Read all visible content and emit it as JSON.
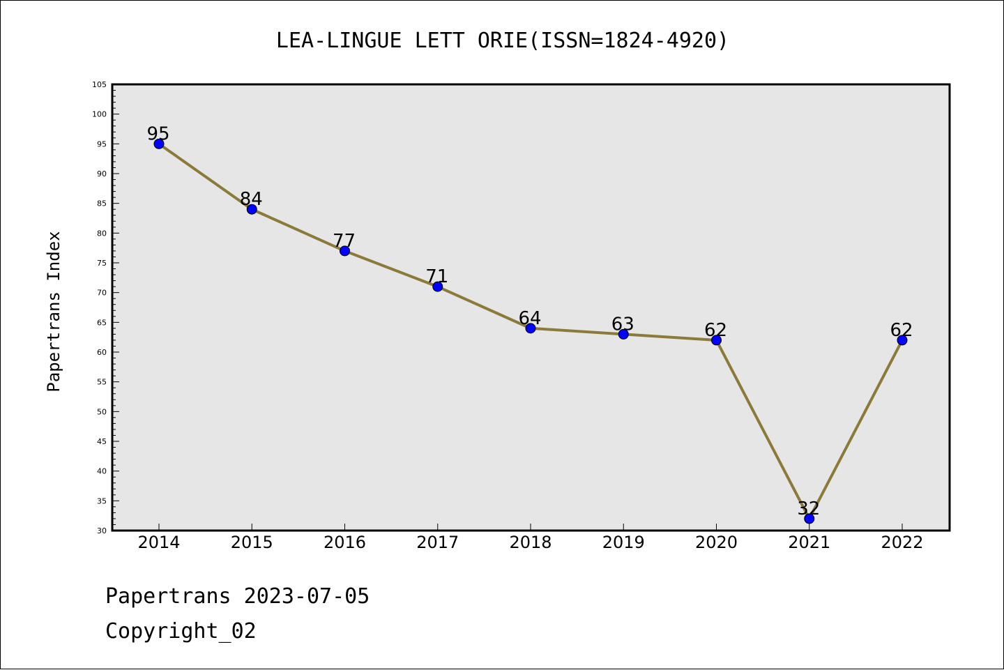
{
  "chart_data": {
    "type": "line",
    "title": "LEA-LINGUE LETT ORIE(ISSN=1824-4920)",
    "ylabel": "Papertrans Index",
    "xlabel": "",
    "categories": [
      "2014",
      "2015",
      "2016",
      "2017",
      "2018",
      "2019",
      "2020",
      "2021",
      "2022"
    ],
    "values": [
      95,
      84,
      77,
      71,
      64,
      63,
      62,
      32,
      62
    ],
    "ylim": [
      30,
      105
    ],
    "yticks": [
      30,
      35,
      40,
      45,
      50,
      55,
      60,
      65,
      70,
      75,
      80,
      85,
      90,
      95,
      100,
      105
    ],
    "grid": false,
    "colors": {
      "line": "#8b7a3a",
      "marker": "#0000ff",
      "plot_background": "#e6e6e6"
    }
  },
  "footer": {
    "line1": "Papertrans 2023-07-05",
    "line2": "Copyright_02"
  }
}
